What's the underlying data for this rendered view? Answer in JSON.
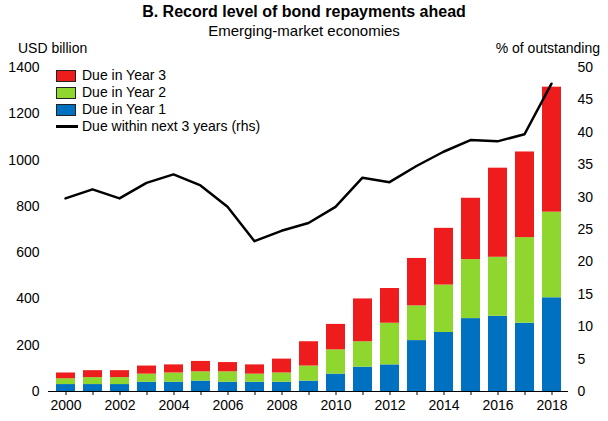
{
  "chart_data": {
    "type": "bar",
    "title": "B. Record level of bond repayments ahead",
    "subtitle": "Emerging-market economies",
    "ylabel": "USD billion",
    "y2label": "% of outstanding",
    "categories": [
      "2000",
      null,
      "2002",
      null,
      "2004",
      null,
      "2006",
      null,
      "2008",
      null,
      "2010",
      null,
      "2012",
      null,
      "2014",
      null,
      "2016",
      null,
      "2018"
    ],
    "series": [
      {
        "name": "Due in Year 1",
        "color": "#0070c0",
        "values": [
          30,
          30,
          30,
          40,
          40,
          45,
          40,
          40,
          40,
          45,
          75,
          105,
          115,
          220,
          255,
          315,
          325,
          295,
          405
        ]
      },
      {
        "name": "Due in Year 2",
        "color": "#8fd62e",
        "values": [
          25,
          30,
          30,
          35,
          40,
          40,
          45,
          35,
          40,
          65,
          105,
          110,
          180,
          150,
          205,
          255,
          255,
          370,
          370
        ]
      },
      {
        "name": "Due in Year 3",
        "color": "#ee1c1c",
        "values": [
          25,
          30,
          30,
          35,
          35,
          45,
          40,
          40,
          60,
          105,
          110,
          185,
          150,
          205,
          245,
          265,
          385,
          370,
          540
        ]
      },
      {
        "name": "Due within next 3 years (rhs)",
        "color": "#000000",
        "type": "line",
        "axis": "y2",
        "values": [
          29.8,
          31.2,
          29.8,
          32.2,
          33.5,
          31.8,
          28.5,
          23.2,
          24.8,
          26,
          28.5,
          33,
          32.3,
          34.8,
          37,
          38.8,
          38.6,
          39.7,
          47.5
        ]
      }
    ],
    "ylim": [
      0,
      1400
    ],
    "yticks": [
      0,
      200,
      400,
      600,
      800,
      1000,
      1200,
      1400
    ],
    "y2lim": [
      0,
      50
    ],
    "y2ticks": [
      0,
      5,
      10,
      15,
      20,
      25,
      30,
      35,
      40,
      45,
      50
    ],
    "stacked": true,
    "grid": false,
    "legend": "top-left"
  }
}
